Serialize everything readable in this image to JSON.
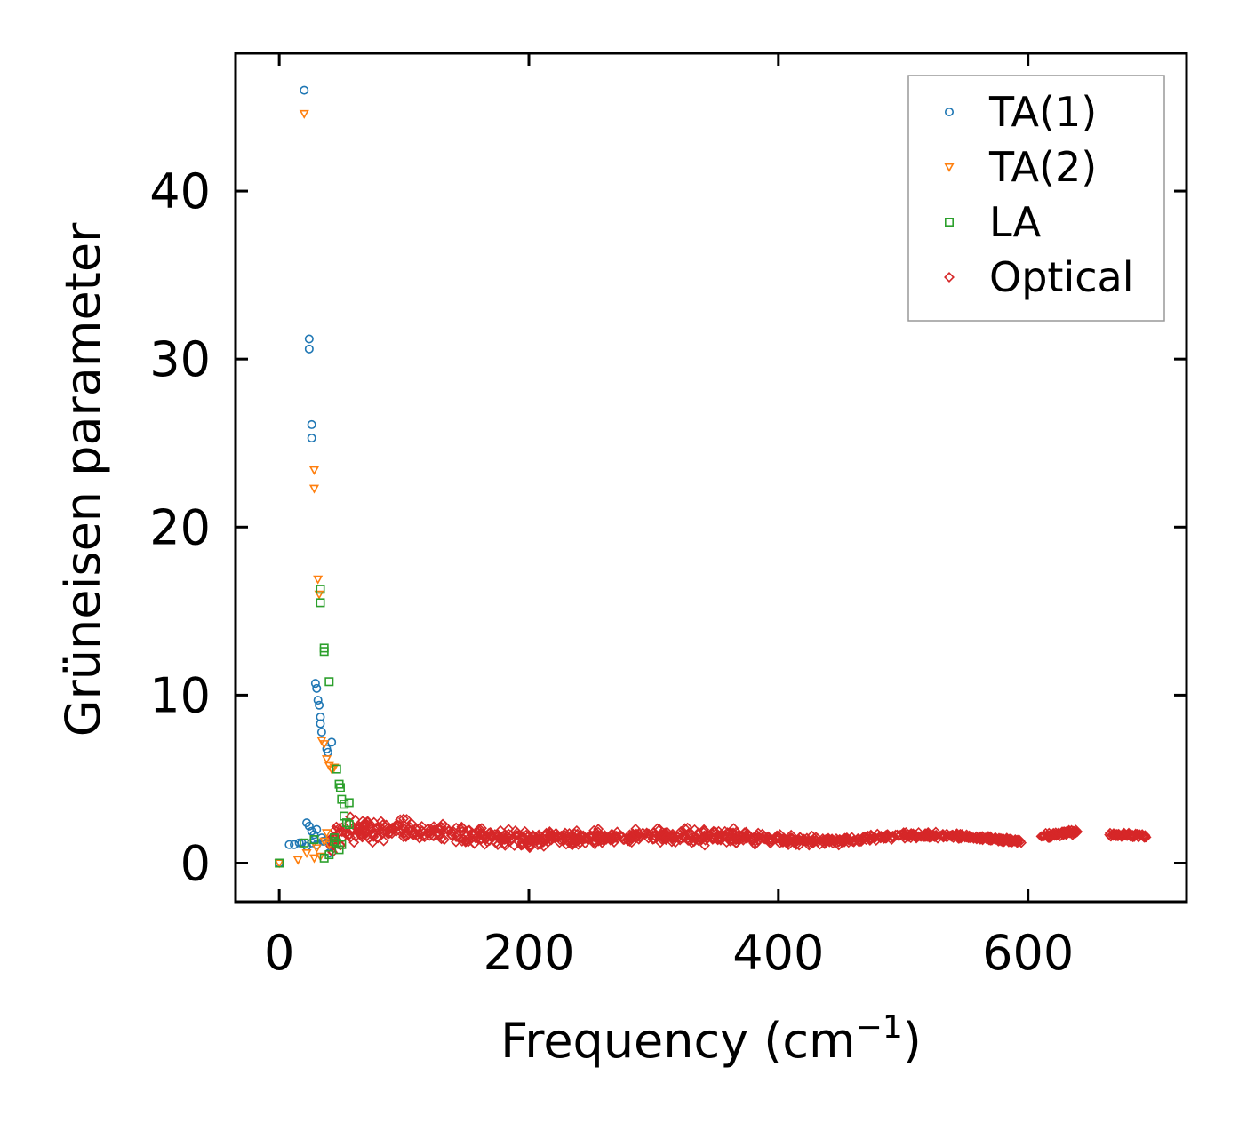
{
  "chart_data": {
    "type": "scatter",
    "title": "",
    "xlabel": "Frequency (cm",
    "xlabel_sup": "−1",
    "xlabel_suffix": ")",
    "ylabel": "Grüneisen parameter",
    "xlim": [
      -35,
      727
    ],
    "ylim": [
      -2.3,
      48.2
    ],
    "xticks": [
      0,
      200,
      400,
      600
    ],
    "xtick_labels": [
      "0",
      "200",
      "400",
      "600"
    ],
    "yticks": [
      0,
      10,
      20,
      30,
      40
    ],
    "ytick_labels": [
      "0",
      "10",
      "20",
      "30",
      "40"
    ],
    "grid": false,
    "legend_position": "top-right",
    "series": [
      {
        "name": "TA(1)",
        "marker": "circle",
        "color": "#1f77b4",
        "points": [
          [
            0,
            0
          ],
          [
            8,
            1.1
          ],
          [
            12,
            1.1
          ],
          [
            16,
            1.2
          ],
          [
            18,
            1.2
          ],
          [
            20,
            46.0
          ],
          [
            22,
            2.4
          ],
          [
            24,
            31.2
          ],
          [
            24,
            30.6
          ],
          [
            24,
            2.2
          ],
          [
            26,
            26.1
          ],
          [
            26,
            25.3
          ],
          [
            26,
            1.9
          ],
          [
            28,
            1.7
          ],
          [
            28,
            1.4
          ],
          [
            29,
            10.7
          ],
          [
            30,
            10.4
          ],
          [
            30,
            2.0
          ],
          [
            31,
            9.7
          ],
          [
            32,
            9.4
          ],
          [
            33,
            8.7
          ],
          [
            33,
            8.3
          ],
          [
            34,
            7.8
          ],
          [
            34,
            1.5
          ],
          [
            36,
            1.3
          ],
          [
            38,
            6.8
          ],
          [
            39,
            6.6
          ],
          [
            42,
            7.2
          ],
          [
            40,
            0.6
          ],
          [
            22,
            1.0
          ],
          [
            26,
            1.2
          ],
          [
            30,
            1.1
          ],
          [
            35,
            1.3
          ]
        ]
      },
      {
        "name": "TA(2)",
        "marker": "triangle-down",
        "color": "#ff7f0e",
        "points": [
          [
            0,
            0
          ],
          [
            15,
            0.2
          ],
          [
            20,
            44.6
          ],
          [
            22,
            0.6
          ],
          [
            28,
            23.4
          ],
          [
            28,
            22.3
          ],
          [
            31,
            16.9
          ],
          [
            32,
            16.0
          ],
          [
            34,
            7.3
          ],
          [
            36,
            7.1
          ],
          [
            38,
            6.2
          ],
          [
            40,
            5.8
          ],
          [
            42,
            5.6
          ],
          [
            44,
            5.7
          ],
          [
            38,
            1.8
          ],
          [
            36,
            1.3
          ],
          [
            30,
            0.9
          ],
          [
            33,
            0.4
          ],
          [
            28,
            0.3
          ],
          [
            40,
            1.1
          ]
        ]
      },
      {
        "name": "LA",
        "marker": "square",
        "color": "#2ca02c",
        "points": [
          [
            0,
            0
          ],
          [
            20,
            1.2
          ],
          [
            28,
            1.4
          ],
          [
            33,
            16.3
          ],
          [
            33,
            15.5
          ],
          [
            36,
            12.8
          ],
          [
            36,
            12.6
          ],
          [
            40,
            10.8
          ],
          [
            46,
            5.6
          ],
          [
            48,
            4.7
          ],
          [
            49,
            4.5
          ],
          [
            50,
            3.8
          ],
          [
            52,
            3.5
          ],
          [
            52,
            2.8
          ],
          [
            54,
            2.4
          ],
          [
            56,
            2.3
          ],
          [
            56,
            3.6
          ],
          [
            44,
            1.5
          ],
          [
            46,
            1.2
          ],
          [
            48,
            0.8
          ],
          [
            40,
            0.5
          ],
          [
            36,
            0.3
          ],
          [
            50,
            1.1
          ],
          [
            44,
            1.3
          ]
        ]
      },
      {
        "name": "Optical",
        "marker": "diamond",
        "color": "#d62728",
        "band": {
          "x_ranges": [
            [
              40,
              595
            ],
            [
              610,
              640
            ],
            [
              665,
              695
            ]
          ],
          "count": 1100,
          "center": [
            [
              40,
              1.2
            ],
            [
              60,
              2.0
            ],
            [
              100,
              2.0
            ],
            [
              150,
              1.6
            ],
            [
              200,
              1.4
            ],
            [
              250,
              1.5
            ],
            [
              300,
              1.6
            ],
            [
              350,
              1.6
            ],
            [
              400,
              1.4
            ],
            [
              450,
              1.3
            ],
            [
              500,
              1.7
            ],
            [
              550,
              1.6
            ],
            [
              595,
              1.3
            ],
            [
              610,
              1.6
            ],
            [
              640,
              1.9
            ],
            [
              665,
              1.7
            ],
            [
              695,
              1.6
            ]
          ],
          "spread": [
            [
              40,
              1.0
            ],
            [
              60,
              1.2
            ],
            [
              100,
              1.0
            ],
            [
              200,
              0.7
            ],
            [
              300,
              0.6
            ],
            [
              350,
              0.8
            ],
            [
              400,
              0.5
            ],
            [
              500,
              0.3
            ],
            [
              600,
              0.25
            ],
            [
              700,
              0.2
            ]
          ]
        }
      }
    ]
  }
}
